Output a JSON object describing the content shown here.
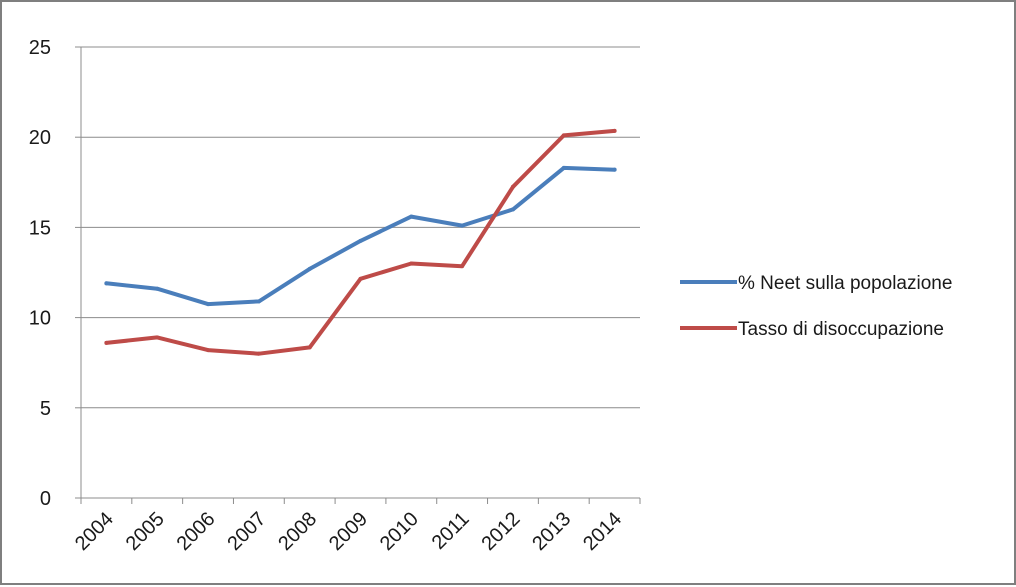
{
  "chart_data": {
    "type": "line",
    "x": [
      "2004",
      "2005",
      "2006",
      "2007",
      "2008",
      "2009",
      "2010",
      "2011",
      "2012",
      "2013",
      "2014"
    ],
    "series": [
      {
        "name": "% Neet sulla popolazione",
        "color": "#4a7ebb",
        "values": [
          11.9,
          11.6,
          10.75,
          10.9,
          12.7,
          14.25,
          15.6,
          15.1,
          16.0,
          18.3,
          18.2
        ]
      },
      {
        "name": "Tasso di disoccupazione",
        "color": "#be4b48",
        "values": [
          8.6,
          8.9,
          8.2,
          8.0,
          8.35,
          12.15,
          13.0,
          12.85,
          17.25,
          20.1,
          20.35
        ]
      }
    ],
    "ylim": [
      0,
      25
    ],
    "yticks": [
      0,
      5,
      10,
      15,
      20,
      25
    ],
    "grid": true,
    "legend_position": "right",
    "gridline_color": "#8c8c8c"
  }
}
